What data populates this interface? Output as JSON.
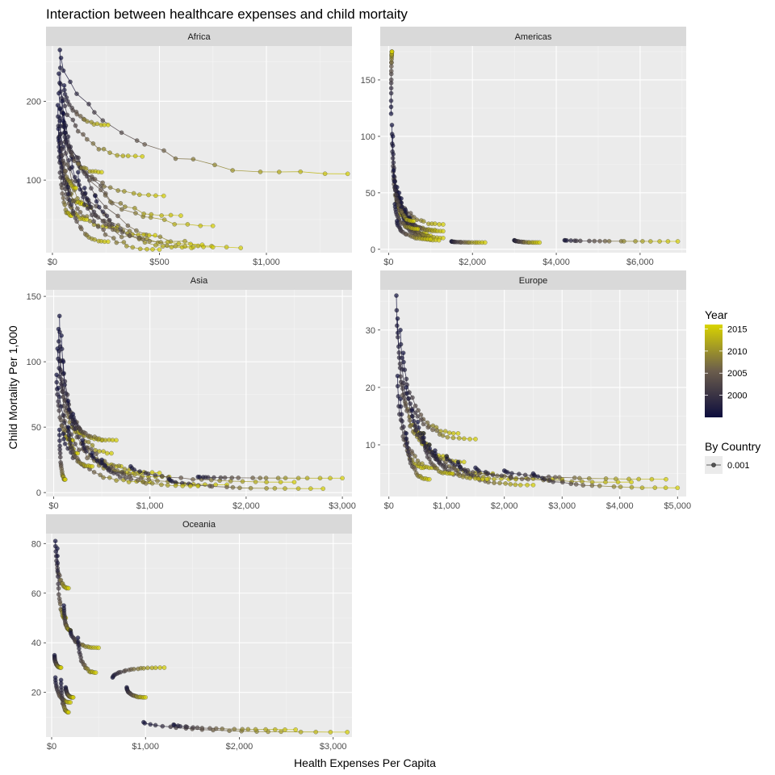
{
  "chart_data": {
    "type": "line",
    "title": "Interaction between healthcare expenses and child mortaity",
    "xlabel": "Health Expenses Per Capita",
    "ylabel": "Child Mortality Per 1,000",
    "color_scale": {
      "title": "Year",
      "low_color": "#0d0d3d",
      "mid_color": "#6b5d4c",
      "high_color": "#d9d400",
      "range": [
        1995,
        2016
      ],
      "ticks": [
        2000,
        2005,
        2010,
        2015
      ]
    },
    "size_legend": {
      "title": "By Country",
      "label": "0.001"
    },
    "panels": [
      {
        "name": "Africa",
        "xlim": [
          -30,
          1400
        ],
        "ylim": [
          8,
          270
        ],
        "x_ticks": [
          {
            "v": 0,
            "label": "$0"
          },
          {
            "v": 500,
            "label": "$500"
          },
          {
            "v": 1000,
            "label": "$1,000"
          }
        ],
        "y_ticks": [
          {
            "v": 100,
            "label": "100"
          },
          {
            "v": 200,
            "label": "200"
          }
        ],
        "series": [
          {
            "x0": 35,
            "y0": 265,
            "x1": 180,
            "y1": 65
          },
          {
            "x0": 40,
            "y0": 255,
            "x1": 1380,
            "y1": 108
          },
          {
            "x0": 30,
            "y0": 235,
            "x1": 420,
            "y1": 130
          },
          {
            "x0": 55,
            "y0": 220,
            "x1": 260,
            "y1": 170
          },
          {
            "x0": 30,
            "y0": 210,
            "x1": 750,
            "y1": 42
          },
          {
            "x0": 45,
            "y0": 200,
            "x1": 600,
            "y1": 55
          },
          {
            "x0": 25,
            "y0": 195,
            "x1": 140,
            "y1": 70
          },
          {
            "x0": 50,
            "y0": 185,
            "x1": 880,
            "y1": 14
          },
          {
            "x0": 35,
            "y0": 175,
            "x1": 700,
            "y1": 18
          },
          {
            "x0": 28,
            "y0": 165,
            "x1": 90,
            "y1": 55
          },
          {
            "x0": 60,
            "y0": 160,
            "x1": 520,
            "y1": 80
          },
          {
            "x0": 30,
            "y0": 150,
            "x1": 300,
            "y1": 40
          },
          {
            "x0": 40,
            "y0": 140,
            "x1": 160,
            "y1": 50
          },
          {
            "x0": 90,
            "y0": 130,
            "x1": 650,
            "y1": 14
          },
          {
            "x0": 120,
            "y0": 110,
            "x1": 500,
            "y1": 12
          },
          {
            "x0": 70,
            "y0": 100,
            "x1": 260,
            "y1": 22
          },
          {
            "x0": 150,
            "y0": 90,
            "x1": 480,
            "y1": 30
          },
          {
            "x0": 200,
            "y0": 80,
            "x1": 750,
            "y1": 15
          },
          {
            "x0": 35,
            "y0": 190,
            "x1": 110,
            "y1": 90
          },
          {
            "x0": 50,
            "y0": 175,
            "x1": 230,
            "y1": 110
          }
        ]
      },
      {
        "name": "Americas",
        "xlim": [
          -200,
          7100
        ],
        "ylim": [
          -3,
          180
        ],
        "x_ticks": [
          {
            "v": 0,
            "label": "$0"
          },
          {
            "v": 2000,
            "label": "$2,000"
          },
          {
            "v": 4000,
            "label": "$4,000"
          },
          {
            "v": 6000,
            "label": "$6,000"
          }
        ],
        "y_ticks": [
          {
            "v": 0,
            "label": "0"
          },
          {
            "v": 50,
            "label": "50"
          },
          {
            "v": 100,
            "label": "100"
          },
          {
            "v": 150,
            "label": "150"
          }
        ],
        "series": [
          {
            "x0": 60,
            "y0": 120,
            "x1": 80,
            "y1": 175
          },
          {
            "x0": 80,
            "y0": 110,
            "x1": 300,
            "y1": 35
          },
          {
            "x0": 100,
            "y0": 100,
            "x1": 400,
            "y1": 28
          },
          {
            "x0": 150,
            "y0": 60,
            "x1": 1300,
            "y1": 22
          },
          {
            "x0": 200,
            "y0": 55,
            "x1": 1100,
            "y1": 17
          },
          {
            "x0": 250,
            "y0": 50,
            "x1": 900,
            "y1": 14
          },
          {
            "x0": 300,
            "y0": 45,
            "x1": 1000,
            "y1": 12
          },
          {
            "x0": 400,
            "y0": 35,
            "x1": 1300,
            "y1": 10
          },
          {
            "x0": 350,
            "y0": 30,
            "x1": 1200,
            "y1": 8
          },
          {
            "x0": 500,
            "y0": 28,
            "x1": 1300,
            "y1": 16
          },
          {
            "x0": 150,
            "y0": 40,
            "x1": 700,
            "y1": 18
          },
          {
            "x0": 3000,
            "y0": 8,
            "x1": 3600,
            "y1": 6
          },
          {
            "x0": 1500,
            "y0": 7,
            "x1": 2300,
            "y1": 6
          },
          {
            "x0": 4200,
            "y0": 8,
            "x1": 6900,
            "y1": 7
          },
          {
            "x0": 200,
            "y0": 25,
            "x1": 1000,
            "y1": 9
          },
          {
            "x0": 120,
            "y0": 70,
            "x1": 600,
            "y1": 25
          }
        ]
      },
      {
        "name": "Asia",
        "xlim": [
          -80,
          3100
        ],
        "ylim": [
          -3,
          155
        ],
        "x_ticks": [
          {
            "v": 0,
            "label": "$0"
          },
          {
            "v": 1000,
            "label": "$1,000"
          },
          {
            "v": 2000,
            "label": "$2,000"
          },
          {
            "v": 3000,
            "label": "$3,000"
          }
        ],
        "y_ticks": [
          {
            "v": 0,
            "label": "0"
          },
          {
            "v": 50,
            "label": "50"
          },
          {
            "v": 100,
            "label": "100"
          },
          {
            "v": 150,
            "label": "150"
          }
        ],
        "series": [
          {
            "x0": 60,
            "y0": 135,
            "x1": 250,
            "y1": 30
          },
          {
            "x0": 50,
            "y0": 125,
            "x1": 300,
            "y1": 45
          },
          {
            "x0": 80,
            "y0": 120,
            "x1": 600,
            "y1": 30
          },
          {
            "x0": 40,
            "y0": 110,
            "x1": 500,
            "y1": 40
          },
          {
            "x0": 100,
            "y0": 100,
            "x1": 700,
            "y1": 20
          },
          {
            "x0": 30,
            "y0": 90,
            "x1": 200,
            "y1": 40
          },
          {
            "x0": 50,
            "y0": 80,
            "x1": 900,
            "y1": 15
          },
          {
            "x0": 150,
            "y0": 70,
            "x1": 1100,
            "y1": 15
          },
          {
            "x0": 200,
            "y0": 60,
            "x1": 650,
            "y1": 40
          },
          {
            "x0": 60,
            "y0": 48,
            "x1": 120,
            "y1": 10
          },
          {
            "x0": 100,
            "y0": 45,
            "x1": 1000,
            "y1": 8
          },
          {
            "x0": 300,
            "y0": 40,
            "x1": 1200,
            "y1": 12
          },
          {
            "x0": 400,
            "y0": 30,
            "x1": 1800,
            "y1": 6
          },
          {
            "x0": 800,
            "y0": 20,
            "x1": 2500,
            "y1": 8
          },
          {
            "x0": 1500,
            "y0": 12,
            "x1": 3000,
            "y1": 11
          },
          {
            "x0": 1200,
            "y0": 10,
            "x1": 2800,
            "y1": 3
          },
          {
            "x0": 500,
            "y0": 25,
            "x1": 1500,
            "y1": 5
          },
          {
            "x0": 150,
            "y0": 50,
            "x1": 400,
            "y1": 20
          }
        ]
      },
      {
        "name": "Europe",
        "xlim": [
          -150,
          5150
        ],
        "ylim": [
          1,
          37
        ],
        "x_ticks": [
          {
            "v": 0,
            "label": "$0"
          },
          {
            "v": 1000,
            "label": "$1,000"
          },
          {
            "v": 2000,
            "label": "$2,000"
          },
          {
            "v": 3000,
            "label": "$3,000"
          },
          {
            "v": 4000,
            "label": "$4,000"
          },
          {
            "v": 5000,
            "label": "$5,000"
          }
        ],
        "y_ticks": [
          {
            "v": 10,
            "label": "10"
          },
          {
            "v": 20,
            "label": "20"
          },
          {
            "v": 30,
            "label": "30"
          }
        ],
        "series": [
          {
            "x0": 130,
            "y0": 36,
            "x1": 600,
            "y1": 12
          },
          {
            "x0": 150,
            "y0": 32,
            "x1": 700,
            "y1": 10
          },
          {
            "x0": 200,
            "y0": 30,
            "x1": 1000,
            "y1": 8
          },
          {
            "x0": 250,
            "y0": 26,
            "x1": 1200,
            "y1": 12
          },
          {
            "x0": 150,
            "y0": 22,
            "x1": 600,
            "y1": 6
          },
          {
            "x0": 300,
            "y0": 20,
            "x1": 1500,
            "y1": 11
          },
          {
            "x0": 200,
            "y0": 18,
            "x1": 800,
            "y1": 6
          },
          {
            "x0": 400,
            "y0": 16,
            "x1": 1300,
            "y1": 7
          },
          {
            "x0": 500,
            "y0": 14,
            "x1": 1800,
            "y1": 5
          },
          {
            "x0": 300,
            "y0": 12,
            "x1": 700,
            "y1": 4
          },
          {
            "x0": 700,
            "y0": 10,
            "x1": 2200,
            "y1": 4
          },
          {
            "x0": 1000,
            "y0": 8,
            "x1": 3000,
            "y1": 4
          },
          {
            "x0": 1500,
            "y0": 6,
            "x1": 4200,
            "y1": 3.5
          },
          {
            "x0": 2000,
            "y0": 5.5,
            "x1": 4800,
            "y1": 4
          },
          {
            "x0": 2500,
            "y0": 5,
            "x1": 5000,
            "y1": 2.5
          },
          {
            "x0": 1200,
            "y0": 7,
            "x1": 2500,
            "y1": 3
          },
          {
            "x0": 800,
            "y0": 9,
            "x1": 1700,
            "y1": 4
          },
          {
            "x0": 600,
            "y0": 12,
            "x1": 1100,
            "y1": 5
          }
        ]
      },
      {
        "name": "Oceania",
        "xlim": [
          -60,
          3200
        ],
        "ylim": [
          2,
          84
        ],
        "x_ticks": [
          {
            "v": 0,
            "label": "$0"
          },
          {
            "v": 1000,
            "label": "$1,000"
          },
          {
            "v": 2000,
            "label": "$2,000"
          },
          {
            "v": 3000,
            "label": "$3,000"
          }
        ],
        "y_ticks": [
          {
            "v": 20,
            "label": "20"
          },
          {
            "v": 40,
            "label": "40"
          },
          {
            "v": 60,
            "label": "60"
          },
          {
            "v": 80,
            "label": "80"
          }
        ],
        "series": [
          {
            "x0": 40,
            "y0": 81,
            "x1": 180,
            "y1": 62
          },
          {
            "x0": 60,
            "y0": 78,
            "x1": 150,
            "y1": 50
          },
          {
            "x0": 130,
            "y0": 55,
            "x1": 200,
            "y1": 45
          },
          {
            "x0": 200,
            "y0": 45,
            "x1": 500,
            "y1": 38
          },
          {
            "x0": 280,
            "y0": 42,
            "x1": 470,
            "y1": 28
          },
          {
            "x0": 30,
            "y0": 35,
            "x1": 100,
            "y1": 30
          },
          {
            "x0": 40,
            "y0": 26,
            "x1": 200,
            "y1": 16
          },
          {
            "x0": 100,
            "y0": 25,
            "x1": 180,
            "y1": 12
          },
          {
            "x0": 150,
            "y0": 22,
            "x1": 230,
            "y1": 18
          },
          {
            "x0": 650,
            "y0": 26,
            "x1": 1200,
            "y1": 30
          },
          {
            "x0": 800,
            "y0": 22,
            "x1": 1000,
            "y1": 18
          },
          {
            "x0": 980,
            "y0": 8,
            "x1": 3150,
            "y1": 4
          },
          {
            "x0": 1300,
            "y0": 7,
            "x1": 2600,
            "y1": 5
          }
        ]
      }
    ]
  }
}
